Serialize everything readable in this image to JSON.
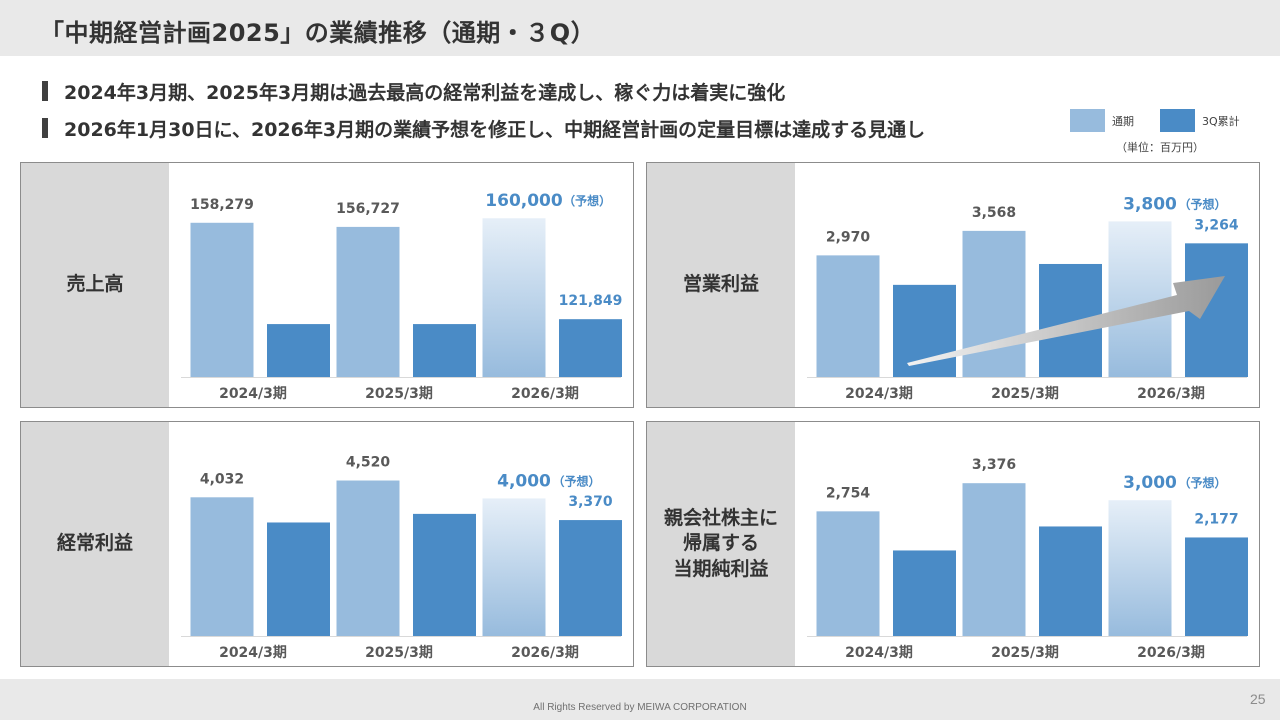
{
  "slide": {
    "title": "「中期経営計画2025」の業績推移（通期・３Q）",
    "bullets": [
      "2024年3月期、2025年3月期は過去最高の経常利益を達成し、稼ぐ力は着実に強化",
      "2026年1月30日に、2026年3月期の業績予想を修正し、中期経営計画の定量目標は達成する見通し"
    ],
    "legend": {
      "full_year": "通期",
      "q3": "3Q累計"
    },
    "unit_note": "（単位：百万円）",
    "copyright": "All Rights Reserved by MEIWA CORPORATION",
    "page_number": "25"
  },
  "colors": {
    "full_year": "#97bbdd",
    "q3": "#4a8bc6",
    "forecast_text": "#4a8bc6",
    "value_text": "#595959",
    "arrow": "#9a9a9a"
  },
  "chart_data": [
    {
      "type": "bar",
      "title": "売上高",
      "categories": [
        "2024/3期",
        "2025/3期",
        "2026/3期"
      ],
      "series": [
        {
          "name": "通期",
          "values": [
            158279,
            156727,
            160000
          ],
          "labels": [
            "158,279",
            "156,727",
            "160,000"
          ]
        },
        {
          "name": "3Q累計",
          "values": [
            null,
            null,
            121849
          ],
          "labels": [
            "",
            "",
            "121,849"
          ]
        }
      ],
      "q3_bars_drawn_without_labels": [
        120000,
        120000
      ],
      "forecast_note": "（予想）",
      "ylim": [
        100000,
        165000
      ],
      "growth_arrow": false
    },
    {
      "type": "bar",
      "title": "営業利益",
      "categories": [
        "2024/3期",
        "2025/3期",
        "2026/3期"
      ],
      "series": [
        {
          "name": "通期",
          "values": [
            2970,
            3568,
            3800
          ],
          "labels": [
            "2,970",
            "3,568",
            "3,800"
          ]
        },
        {
          "name": "3Q累計",
          "values": [
            null,
            null,
            3264
          ],
          "labels": [
            "",
            "",
            "3,264"
          ]
        }
      ],
      "q3_bars_drawn_without_labels": [
        2250,
        2760
      ],
      "forecast_note": "（予想）",
      "ylim": [
        0,
        4200
      ],
      "growth_arrow": true
    },
    {
      "type": "bar",
      "title": "経常利益",
      "categories": [
        "2024/3期",
        "2025/3期",
        "2026/3期"
      ],
      "series": [
        {
          "name": "通期",
          "values": [
            4032,
            4520,
            4000
          ],
          "labels": [
            "4,032",
            "4,520",
            "4,000"
          ]
        },
        {
          "name": "3Q累計",
          "values": [
            null,
            null,
            3370
          ],
          "labels": [
            "",
            "",
            "3,370"
          ]
        }
      ],
      "q3_bars_drawn_without_labels": [
        3300,
        3550
      ],
      "forecast_note": "（予想）",
      "ylim": [
        0,
        5000
      ],
      "growth_arrow": false
    },
    {
      "type": "bar",
      "title": "親会社株主に\n帰属する\n当期純利益",
      "categories": [
        "2024/3期",
        "2025/3期",
        "2026/3期"
      ],
      "series": [
        {
          "name": "通期",
          "values": [
            2754,
            3376,
            3000
          ],
          "labels": [
            "2,754",
            "3,376",
            "3,000"
          ]
        },
        {
          "name": "3Q累計",
          "values": [
            null,
            null,
            2177
          ],
          "labels": [
            "",
            "",
            "2,177"
          ]
        }
      ],
      "q3_bars_drawn_without_labels": [
        1890,
        2420
      ],
      "forecast_note": "（予想）",
      "ylim": [
        0,
        3800
      ],
      "growth_arrow": false
    }
  ]
}
